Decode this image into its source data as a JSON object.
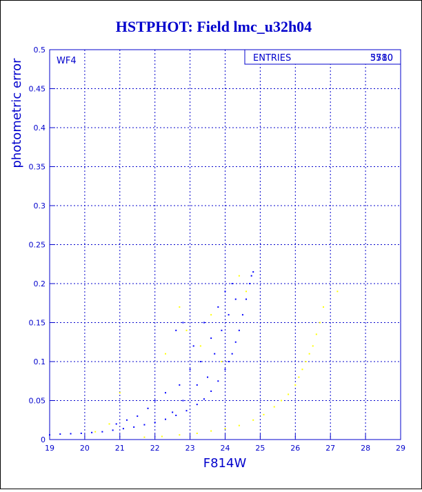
{
  "chart_data": {
    "type": "scatter",
    "title": "HSTPHOT: Field lmc_u32h04",
    "panel_label": "WF4",
    "stats": {
      "label": "ENTRIES",
      "values": [
        5780,
        3510
      ]
    },
    "xlabel": "F814W",
    "ylabel": "photometric error",
    "xlim": [
      19,
      29
    ],
    "ylim": [
      0,
      0.5
    ],
    "xticks": [
      19,
      20,
      21,
      22,
      23,
      24,
      25,
      26,
      27,
      28,
      29
    ],
    "yticks": [
      0,
      0.05,
      0.1,
      0.15,
      0.2,
      0.25,
      0.3,
      0.35,
      0.4,
      0.45,
      0.5
    ],
    "grid": true,
    "series": [
      {
        "color": "#0000ff",
        "x": [
          19.0,
          19.3,
          19.6,
          19.9,
          20.2,
          20.5,
          20.8,
          21.1,
          21.4,
          21.7,
          22.0,
          22.3,
          22.6,
          22.9,
          23.2,
          23.4,
          23.6,
          23.8,
          24.0,
          24.1,
          24.2,
          24.3,
          24.4,
          24.5,
          24.6,
          24.7,
          24.75,
          24.8,
          21.5,
          21.8,
          22.0,
          22.3,
          22.5,
          22.7,
          22.8,
          23.0,
          23.1,
          23.3,
          23.4,
          23.5,
          23.6,
          23.7,
          23.8,
          23.9,
          24.0,
          24.1,
          24.2,
          24.3,
          22.8,
          22.6,
          23.2,
          21.2,
          20.9
        ],
        "values": [
          0.006,
          0.007,
          0.0075,
          0.008,
          0.009,
          0.01,
          0.012,
          0.014,
          0.016,
          0.019,
          0.022,
          0.026,
          0.031,
          0.037,
          0.045,
          0.052,
          0.062,
          0.075,
          0.09,
          0.1,
          0.11,
          0.125,
          0.14,
          0.16,
          0.18,
          0.2,
          0.21,
          0.215,
          0.03,
          0.04,
          0.05,
          0.06,
          0.035,
          0.07,
          0.05,
          0.09,
          0.12,
          0.1,
          0.15,
          0.08,
          0.13,
          0.11,
          0.17,
          0.14,
          0.19,
          0.16,
          0.2,
          0.18,
          0.15,
          0.14,
          0.07,
          0.025,
          0.02
        ]
      },
      {
        "color": "#ffff00",
        "x": [
          20.3,
          20.7,
          21.7,
          22.2,
          22.7,
          23.2,
          23.6,
          24.0,
          24.4,
          24.8,
          25.1,
          25.4,
          25.6,
          25.8,
          26.0,
          26.1,
          26.2,
          26.3,
          26.4,
          26.5,
          26.6,
          26.7,
          26.8,
          27.2,
          22.7,
          22.9,
          23.3,
          23.6,
          23.9,
          24.4,
          24.6,
          22.3,
          21.0
        ],
        "values": [
          0.01,
          0.02,
          0.003,
          0.004,
          0.006,
          0.008,
          0.011,
          0.014,
          0.018,
          0.025,
          0.032,
          0.042,
          0.05,
          0.058,
          0.07,
          0.08,
          0.09,
          0.1,
          0.11,
          0.12,
          0.135,
          0.15,
          0.17,
          0.19,
          0.17,
          0.14,
          0.12,
          0.16,
          0.1,
          0.21,
          0.19,
          0.11,
          0.06
        ]
      }
    ]
  }
}
